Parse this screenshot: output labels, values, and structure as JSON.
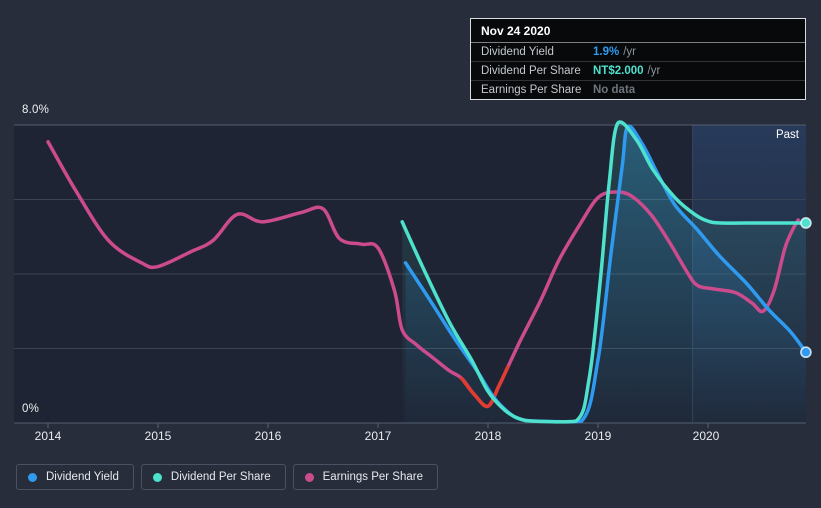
{
  "tooltip": {
    "date": "Nov 24 2020",
    "rows": [
      {
        "label": "Dividend Yield",
        "value": "1.9%",
        "suffix": "/yr",
        "value_color": "#2e9bf0"
      },
      {
        "label": "Dividend Per Share",
        "value": "NT$2.000",
        "suffix": "/yr",
        "value_color": "#4ee1cd"
      },
      {
        "label": "Earnings Per Share",
        "value": "No data",
        "suffix": "",
        "value_color": "#6f757d"
      }
    ]
  },
  "axis": {
    "y_top": "8.0%",
    "y_bottom": "0%",
    "years": [
      "2014",
      "2015",
      "2016",
      "2017",
      "2018",
      "2019",
      "2020"
    ]
  },
  "past_label": "Past",
  "legend": [
    {
      "label": "Dividend Yield",
      "color": "#2e9bf0"
    },
    {
      "label": "Dividend Per Share",
      "color": "#4ee1cd"
    },
    {
      "label": "Earnings Per Share",
      "color": "#cc4b8d"
    }
  ],
  "chart_data": {
    "type": "line",
    "title": "",
    "x_range": [
      2013.69,
      2020.9
    ],
    "x_ticks": [
      2014,
      2015,
      2016,
      2017,
      2018,
      2019,
      2020
    ],
    "y_axis": {
      "unit": "%",
      "range": [
        0,
        8
      ],
      "gridlines": [
        0,
        2,
        4,
        6,
        8
      ],
      "labeled_ticks": {
        "8": "8.0%",
        "0": "0%"
      },
      "grid_on": true
    },
    "past_region_start_x": 2019.86,
    "legend_position": "bottom-left",
    "series": [
      {
        "name": "Earnings Per Share",
        "color": "#cc4b8d",
        "unit": "axis-units (EPS currency scale not shown on chart)",
        "area": false,
        "end_marker": false,
        "negative_segment": {
          "x_range": [
            2017.74,
            2018.2
          ],
          "color": "#e23c31"
        },
        "points": [
          [
            2014.0,
            7.55
          ],
          [
            2014.25,
            6.25
          ],
          [
            2014.55,
            4.9
          ],
          [
            2014.85,
            4.3
          ],
          [
            2015.0,
            4.2
          ],
          [
            2015.3,
            4.6
          ],
          [
            2015.5,
            4.9
          ],
          [
            2015.72,
            5.6
          ],
          [
            2015.95,
            5.4
          ],
          [
            2016.3,
            5.65
          ],
          [
            2016.5,
            5.75
          ],
          [
            2016.65,
            4.95
          ],
          [
            2016.85,
            4.8
          ],
          [
            2017.0,
            4.7
          ],
          [
            2017.15,
            3.55
          ],
          [
            2017.22,
            2.5
          ],
          [
            2017.35,
            2.1
          ],
          [
            2017.5,
            1.75
          ],
          [
            2017.65,
            1.4
          ],
          [
            2017.76,
            1.2
          ],
          [
            2017.88,
            0.75
          ],
          [
            2018.0,
            0.45
          ],
          [
            2018.1,
            1.0
          ],
          [
            2018.18,
            1.5
          ],
          [
            2018.3,
            2.25
          ],
          [
            2018.48,
            3.3
          ],
          [
            2018.65,
            4.4
          ],
          [
            2018.85,
            5.4
          ],
          [
            2019.0,
            6.05
          ],
          [
            2019.15,
            6.2
          ],
          [
            2019.3,
            6.1
          ],
          [
            2019.48,
            5.6
          ],
          [
            2019.65,
            4.85
          ],
          [
            2019.8,
            4.1
          ],
          [
            2019.9,
            3.7
          ],
          [
            2020.05,
            3.6
          ],
          [
            2020.25,
            3.5
          ],
          [
            2020.4,
            3.22
          ],
          [
            2020.5,
            3.0
          ],
          [
            2020.6,
            3.55
          ],
          [
            2020.7,
            4.7
          ],
          [
            2020.78,
            5.25
          ],
          [
            2020.82,
            5.45
          ]
        ]
      },
      {
        "name": "Dividend Yield",
        "color": "#2e9bf0",
        "unit": "%",
        "area": true,
        "end_marker": true,
        "end_value_label": "1.9%",
        "points": [
          [
            2017.25,
            4.3
          ],
          [
            2017.45,
            3.4
          ],
          [
            2017.7,
            2.25
          ],
          [
            2017.9,
            1.4
          ],
          [
            2018.05,
            0.7
          ],
          [
            2018.2,
            0.25
          ],
          [
            2018.3,
            0.1
          ],
          [
            2018.45,
            0.05
          ],
          [
            2018.85,
            0.05
          ],
          [
            2019.0,
            1.7
          ],
          [
            2019.12,
            4.6
          ],
          [
            2019.22,
            6.9
          ],
          [
            2019.27,
            7.95
          ],
          [
            2019.4,
            7.5
          ],
          [
            2019.55,
            6.65
          ],
          [
            2019.7,
            5.85
          ],
          [
            2019.9,
            5.2
          ],
          [
            2020.1,
            4.5
          ],
          [
            2020.35,
            3.75
          ],
          [
            2020.55,
            3.05
          ],
          [
            2020.75,
            2.45
          ],
          [
            2020.89,
            1.9
          ]
        ]
      },
      {
        "name": "Dividend Per Share",
        "color": "#4ee1cd",
        "unit": "NT$ plotted on shared axis (NT$2.000 = 5.37 axis-units, peak = NT$3.0)",
        "area": true,
        "end_marker": true,
        "end_value_label": "NT$2.000",
        "points": [
          [
            2017.22,
            5.4
          ],
          [
            2017.42,
            4.1
          ],
          [
            2017.65,
            2.7
          ],
          [
            2017.85,
            1.7
          ],
          [
            2018.0,
            0.85
          ],
          [
            2018.15,
            0.35
          ],
          [
            2018.28,
            0.12
          ],
          [
            2018.42,
            0.05
          ],
          [
            2018.8,
            0.05
          ],
          [
            2018.92,
            1.2
          ],
          [
            2019.02,
            3.8
          ],
          [
            2019.1,
            6.4
          ],
          [
            2019.18,
            8.05
          ],
          [
            2019.35,
            7.6
          ],
          [
            2019.5,
            6.8
          ],
          [
            2019.7,
            6.05
          ],
          [
            2019.88,
            5.6
          ],
          [
            2020.0,
            5.42
          ],
          [
            2020.12,
            5.37
          ],
          [
            2020.5,
            5.37
          ],
          [
            2020.89,
            5.37
          ]
        ]
      }
    ]
  }
}
